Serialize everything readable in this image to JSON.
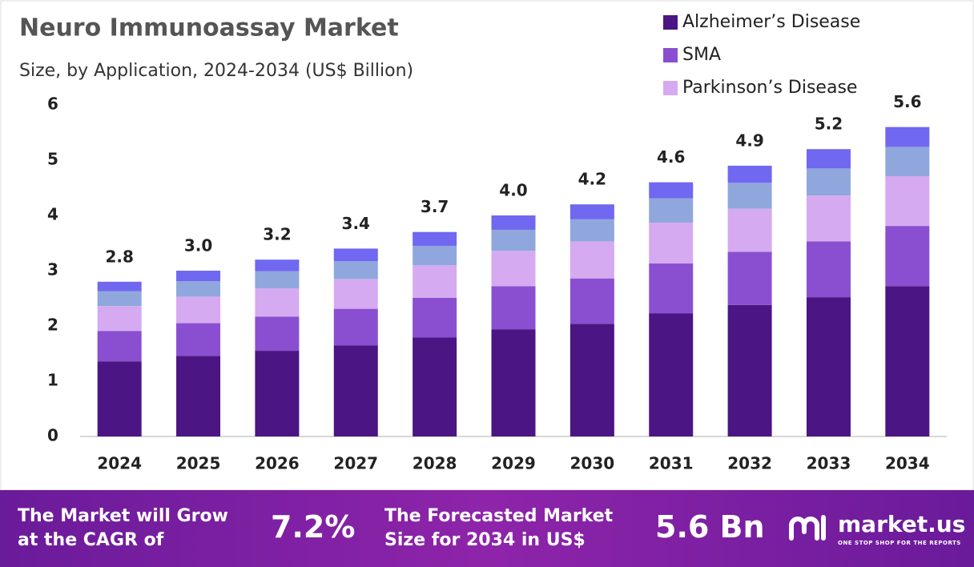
{
  "chart_data": {
    "type": "stacked-bar",
    "title": "Neuro Immunoassay Market",
    "subtitle": "Size, by Application, 2024-2034 (US$ Billion)",
    "categories": [
      "2024",
      "2025",
      "2026",
      "2027",
      "2028",
      "2029",
      "2030",
      "2031",
      "2032",
      "2033",
      "2034"
    ],
    "series": [
      {
        "name": "Alzheimer’s Disease",
        "color": "#4b1583",
        "values": [
          1.36,
          1.46,
          1.55,
          1.65,
          1.79,
          1.94,
          2.04,
          2.23,
          2.38,
          2.52,
          2.72
        ]
      },
      {
        "name": "SMA",
        "color": "#8a4fd0",
        "values": [
          0.55,
          0.59,
          0.62,
          0.66,
          0.72,
          0.78,
          0.82,
          0.9,
          0.96,
          1.01,
          1.09
        ]
      },
      {
        "name": "Parkinson’s Disease",
        "color": "#d5aaf0",
        "values": [
          0.45,
          0.48,
          0.51,
          0.54,
          0.59,
          0.64,
          0.67,
          0.74,
          0.78,
          0.83,
          0.9
        ]
      },
      {
        "name": null,
        "color": "#8fa7dc",
        "values": [
          0.27,
          0.28,
          0.31,
          0.32,
          0.35,
          0.38,
          0.4,
          0.44,
          0.47,
          0.49,
          0.53
        ]
      },
      {
        "name": null,
        "color": "#7068f0",
        "values": [
          0.17,
          0.19,
          0.21,
          0.23,
          0.25,
          0.26,
          0.27,
          0.29,
          0.31,
          0.35,
          0.36
        ]
      }
    ],
    "totals": {
      "values": [
        2.8,
        3.0,
        3.2,
        3.4,
        3.7,
        4.0,
        4.2,
        4.6,
        4.9,
        5.2,
        5.6
      ],
      "value_labels": [
        "2.8",
        "3.0",
        "3.2",
        "3.4",
        "3.7",
        "4.0",
        "4.2",
        "4.6",
        "4.9",
        "5.2",
        "5.6"
      ]
    },
    "ylim": [
      0,
      6
    ],
    "yticks": [
      0,
      1,
      2,
      3,
      4,
      5,
      6
    ],
    "grid": false,
    "legend": "top-right"
  },
  "footer": {
    "cagr_text": [
      "The Market will Grow",
      "at the CAGR of"
    ],
    "cagr": "7.2%",
    "forecast_text": [
      "The Forecasted Market",
      "Size for 2034 in US$"
    ],
    "forecast": "5.6 Bn",
    "brand": "market.us",
    "tagline": "ONE STOP SHOP FOR THE REPORTS"
  }
}
